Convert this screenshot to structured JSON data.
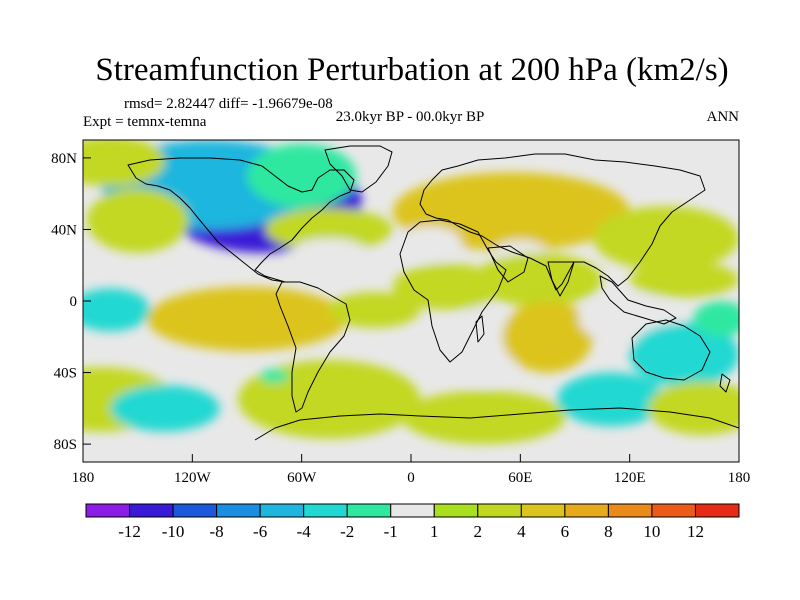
{
  "chart_data": {
    "type": "heatmap",
    "title": "Streamfunction Perturbation at 200 hPa (km2/s)",
    "stats_text": "rmsd= 2.82447 diff= -1.96679e-08",
    "left_label": "Expt = temnx-temna",
    "center_label": "23.0kyr BP - 00.0kyr BP",
    "right_label": "ANN",
    "xlim": [
      -180,
      180
    ],
    "ylim": [
      -90,
      90
    ],
    "x_ticks": [
      {
        "value": -180,
        "label": "180"
      },
      {
        "value": -120,
        "label": "120W"
      },
      {
        "value": -60,
        "label": "60W"
      },
      {
        "value": 0,
        "label": "0"
      },
      {
        "value": 60,
        "label": "60E"
      },
      {
        "value": 120,
        "label": "120E"
      },
      {
        "value": 180,
        "label": "180"
      }
    ],
    "y_ticks": [
      {
        "value": 80,
        "label": "80N"
      },
      {
        "value": 40,
        "label": "40N"
      },
      {
        "value": 0,
        "label": "0"
      },
      {
        "value": -40,
        "label": "40S"
      },
      {
        "value": -80,
        "label": "80S"
      }
    ],
    "colorbar": {
      "colors": [
        "#8c1de6",
        "#3a1ad6",
        "#1b58dc",
        "#1a8ee0",
        "#1eb6de",
        "#22d8d2",
        "#2ee8a0",
        "#e8e8e8",
        "#a8e020",
        "#c2d820",
        "#dcc41e",
        "#e6aa1c",
        "#ea8a1a",
        "#ea5a18",
        "#e62a16"
      ],
      "labels": [
        "-12",
        "-10",
        "-8",
        "-6",
        "-4",
        "-2",
        "-1",
        "1",
        "2",
        "4",
        "6",
        "8",
        "10",
        "12"
      ]
    },
    "field_blobs": [
      {
        "lon": -82,
        "lat": 55,
        "rlon": 55,
        "rlat": 28,
        "value": -12
      },
      {
        "lon": -110,
        "lat": 65,
        "rlon": 60,
        "rlat": 25,
        "value": -6
      },
      {
        "lon": -165,
        "lat": 78,
        "rlon": 30,
        "rlat": 14,
        "value": 2
      },
      {
        "lon": -60,
        "lat": 70,
        "rlon": 30,
        "rlat": 18,
        "value": -2
      },
      {
        "lon": -150,
        "lat": 45,
        "rlon": 28,
        "rlat": 18,
        "value": 2
      },
      {
        "lon": -45,
        "lat": 40,
        "rlon": 35,
        "rlat": 12,
        "value": 2
      },
      {
        "lon": -45,
        "lat": 28,
        "rlon": 20,
        "rlat": 7,
        "value": -1
      },
      {
        "lon": 55,
        "lat": 50,
        "rlon": 65,
        "rlat": 22,
        "value": 5
      },
      {
        "lon": 140,
        "lat": 35,
        "rlon": 40,
        "rlat": 18,
        "value": 3
      },
      {
        "lon": 10,
        "lat": 32,
        "rlon": 18,
        "rlat": 10,
        "value": -1
      },
      {
        "lon": 60,
        "lat": 28,
        "rlon": 14,
        "rlat": 6,
        "value": -1
      },
      {
        "lon": 20,
        "lat": 8,
        "rlon": 30,
        "rlat": 13,
        "value": 2
      },
      {
        "lon": 70,
        "lat": 12,
        "rlon": 35,
        "rlat": 15,
        "value": 2
      },
      {
        "lon": 150,
        "lat": 12,
        "rlon": 30,
        "rlat": 10,
        "value": 2
      },
      {
        "lon": -165,
        "lat": -5,
        "rlon": 22,
        "rlat": 12,
        "value": -4
      },
      {
        "lon": -90,
        "lat": -10,
        "rlon": 55,
        "rlat": 18,
        "value": 5
      },
      {
        "lon": -20,
        "lat": -5,
        "rlon": 25,
        "rlat": 10,
        "value": 2
      },
      {
        "lon": 40,
        "lat": -25,
        "rlon": 20,
        "rlat": 22,
        "value": -1
      },
      {
        "lon": 75,
        "lat": -20,
        "rlon": 25,
        "rlat": 20,
        "value": 5
      },
      {
        "lon": 120,
        "lat": -10,
        "rlon": 28,
        "rlat": 14,
        "value": -1
      },
      {
        "lon": 150,
        "lat": -30,
        "rlon": 30,
        "rlat": 18,
        "value": -4
      },
      {
        "lon": 170,
        "lat": -10,
        "rlon": 15,
        "rlat": 10,
        "value": -2
      },
      {
        "lon": -170,
        "lat": -55,
        "rlon": 40,
        "rlat": 18,
        "value": 2
      },
      {
        "lon": -135,
        "lat": -60,
        "rlon": 30,
        "rlat": 13,
        "value": -4
      },
      {
        "lon": -45,
        "lat": -55,
        "rlon": 50,
        "rlat": 22,
        "value": 2
      },
      {
        "lon": 40,
        "lat": -65,
        "rlon": 45,
        "rlat": 15,
        "value": 2
      },
      {
        "lon": 110,
        "lat": -55,
        "rlon": 30,
        "rlat": 15,
        "value": -4
      },
      {
        "lon": 160,
        "lat": -60,
        "rlon": 30,
        "rlat": 15,
        "value": 2
      },
      {
        "lon": -75,
        "lat": -42,
        "rlon": 8,
        "rlat": 4,
        "value": -2
      }
    ]
  }
}
